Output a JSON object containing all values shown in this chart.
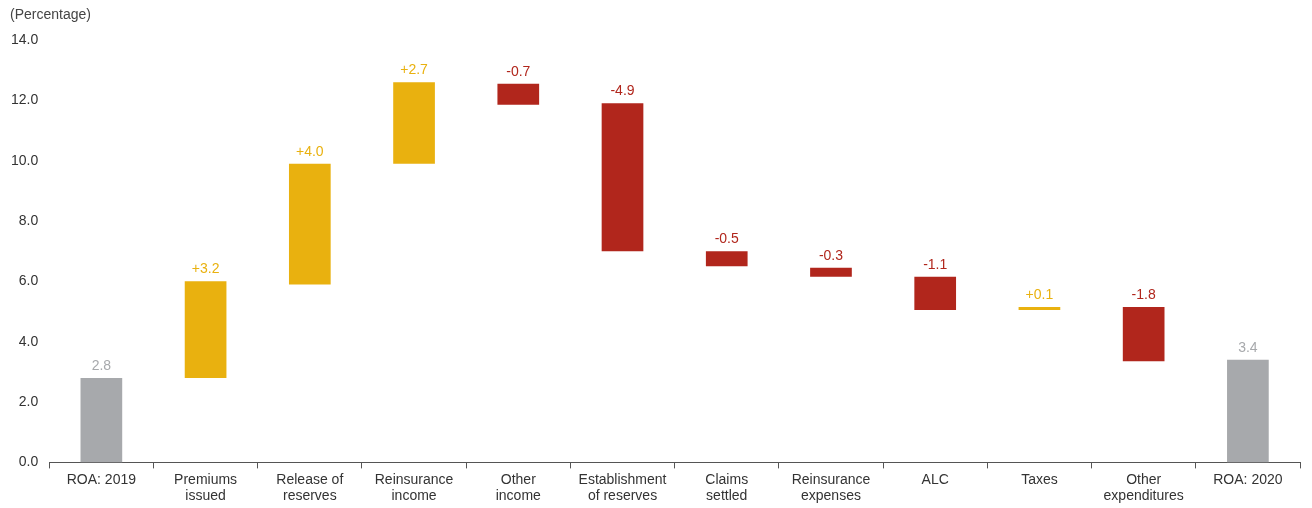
{
  "chart_data": {
    "type": "bar",
    "ylabel": "(Percentage)",
    "categories": [
      "ROA: 2019",
      "Premiums issued",
      "Release of reserves",
      "Reinsurance income",
      "Other income",
      "Establishment of reserves",
      "Claims settled",
      "Reinsurance expenses",
      "ALC",
      "Taxes",
      "Other expenditures",
      "ROA: 2020"
    ],
    "values": [
      2.8,
      3.2,
      4.0,
      2.7,
      -0.7,
      -4.9,
      -0.5,
      -0.3,
      -1.1,
      0.1,
      -1.8,
      3.4
    ],
    "base": [
      0,
      2.8,
      5.9,
      9.9,
      12.55,
      11.9,
      7.0,
      6.45,
      6.15,
      5.05,
      5.15,
      0
    ],
    "colors": [
      "#a7a9ac",
      "#e9b10f",
      "#e9b10f",
      "#e9b10f",
      "#b1261c",
      "#b1261c",
      "#b1261c",
      "#b1261c",
      "#b1261c",
      "#e9b10f",
      "#b1261c",
      "#a7a9ac"
    ],
    "value_labels": [
      "2.8",
      "+3.2",
      "+4.0",
      "+2.7",
      "-0.7",
      "-4.9",
      "-0.5",
      "-0.3",
      "-1.1",
      "+0.1",
      "-1.8",
      "3.4"
    ],
    "ylim": [
      0,
      14
    ],
    "yticks": [
      {
        "value": 0,
        "label": "0.0"
      },
      {
        "value": 2,
        "label": "2.0"
      },
      {
        "value": 4,
        "label": "4.0"
      },
      {
        "value": 6,
        "label": "6.0"
      },
      {
        "value": 8,
        "label": "8.0"
      },
      {
        "value": 10,
        "label": "10.0"
      },
      {
        "value": 12,
        "label": "12.0"
      },
      {
        "value": 14,
        "label": "14.0"
      }
    ],
    "grid": false,
    "legend": false
  }
}
